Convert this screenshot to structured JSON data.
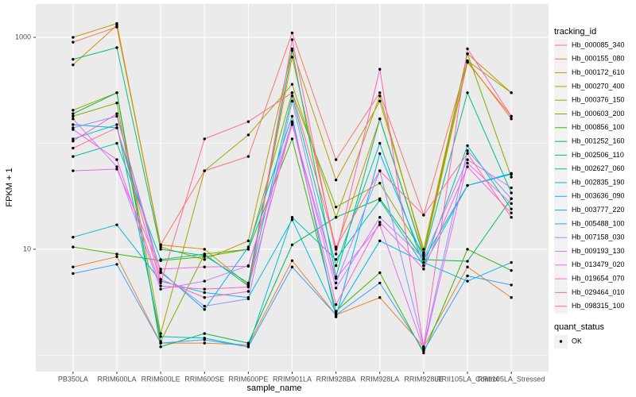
{
  "chart_data": {
    "type": "line",
    "log_y": true,
    "grid": true,
    "x_label": "sample_name",
    "y_label": "FPKM + 1",
    "categories": [
      "PB350LA",
      "RRIM600LA",
      "RRIM600LE",
      "RRIM600SE",
      "RRIM600PE",
      "RRIM901LA",
      "RRIM928BA",
      "RRIM928LA",
      "RRIM928LE",
      "RRII105LA_Control",
      "RRII105LA_Stressed"
    ],
    "ylim": [
      0.7,
      2065
    ],
    "yticks": [
      10,
      1000
    ],
    "legend_title": "tracking_id",
    "point_legend": {
      "title": "quant_status",
      "labels": [
        "OK"
      ],
      "color": "#000000"
    },
    "series": [
      {
        "name": "Hb_000085_340",
        "color": "#F8766D",
        "values": [
          900,
          1250,
          11,
          55,
          75,
          1100,
          70,
          300,
          21,
          600,
          170
        ]
      },
      {
        "name": "Hb_000155_080",
        "color": "#EA8331",
        "values": [
          6.8,
          8.5,
          1.3,
          1.3,
          1.25,
          7.8,
          2.4,
          3.5,
          1.2,
          6.8,
          3.5
        ]
      },
      {
        "name": "Hb_000172_610",
        "color": "#D89000",
        "values": [
          550,
          1300,
          11,
          10,
          4.6,
          650,
          10,
          170,
          8.8,
          580,
          180
        ]
      },
      {
        "name": "Hb_000270_400",
        "color": "#C09B00",
        "values": [
          1000,
          1350,
          10.5,
          8,
          12,
          780,
          45,
          250,
          10,
          700,
          300
        ]
      },
      {
        "name": "Hb_000376_150",
        "color": "#A3A500",
        "values": [
          205,
          300,
          1.6,
          55,
          120,
          360,
          20,
          280,
          9.3,
          600,
          300
        ]
      },
      {
        "name": "Hb_000603_200",
        "color": "#7CAE00",
        "values": [
          180,
          240,
          1.35,
          9,
          10,
          300,
          25,
          42,
          9,
          700,
          48
        ]
      },
      {
        "name": "Hb_000856_100",
        "color": "#39B600",
        "values": [
          10.5,
          9,
          7.8,
          8.5,
          10,
          110,
          2.6,
          6,
          1.05,
          10,
          6.3
        ]
      },
      {
        "name": "Hb_001252_160",
        "color": "#00BB4E",
        "values": [
          190,
          300,
          1.2,
          1.6,
          1.3,
          11,
          20,
          30,
          8,
          7.7,
          30
        ]
      },
      {
        "name": "Hb_002506_110",
        "color": "#00BF7D",
        "values": [
          620,
          800,
          10,
          8.7,
          4.8,
          750,
          5.5,
          170,
          8.6,
          300,
          34
        ]
      },
      {
        "name": "Hb_002627_060",
        "color": "#00C1A3",
        "values": [
          75,
          100,
          8,
          9,
          4.5,
          280,
          7,
          100,
          7,
          95,
          24
        ]
      },
      {
        "name": "Hb_002835_190",
        "color": "#00BFC4",
        "values": [
          110,
          150,
          1.5,
          1.45,
          1.2,
          20,
          8,
          29,
          7,
          40,
          51
        ]
      },
      {
        "name": "Hb_003636_090",
        "color": "#00BAE0",
        "values": [
          13,
          17,
          5,
          3.9,
          3.5,
          19,
          2.5,
          12,
          7.5,
          5,
          7.5
        ]
      },
      {
        "name": "Hb_003777_220",
        "color": "#00B0F6",
        "values": [
          150,
          140,
          6.2,
          2.7,
          10.5,
          180,
          2.3,
          80,
          8,
          40,
          52
        ]
      },
      {
        "name": "Hb_005488_100",
        "color": "#35A2FF",
        "values": [
          5.9,
          7.2,
          1.3,
          1.4,
          1.2,
          6.8,
          2.4,
          4.8,
          1.1,
          5.6,
          4.6
        ]
      },
      {
        "name": "Hb_007158_030",
        "color": "#9590FF",
        "values": [
          140,
          180,
          6,
          2.9,
          3.4,
          250,
          4.8,
          55,
          1.2,
          85,
          30
        ]
      },
      {
        "name": "Hb_009193_130",
        "color": "#C77CFF",
        "values": [
          170,
          60,
          4.2,
          5,
          7,
          160,
          4.3,
          20,
          8.2,
          70,
          38
        ]
      },
      {
        "name": "Hb_013479_020",
        "color": "#E76BF3",
        "values": [
          55,
          57,
          6.5,
          6.8,
          6.9,
          150,
          5.3,
          17,
          1.15,
          65,
          27
        ]
      },
      {
        "name": "Hb_019654_070",
        "color": "#FA62DB",
        "values": [
          135,
          70,
          4.5,
          4.2,
          4.4,
          155,
          3,
          18,
          6.5,
          60,
          22
        ]
      },
      {
        "name": "Hb_029464_010",
        "color": "#FF62BC",
        "values": [
          105,
          190,
          5.2,
          3.5,
          4,
          950,
          9,
          500,
          1.2,
          780,
          180
        ]
      },
      {
        "name": "Hb_098315_100",
        "color": "#FF6C91",
        "values": [
          90,
          140,
          4.8,
          110,
          160,
          300,
          10.5,
          55,
          21,
          80,
          20
        ]
      }
    ]
  }
}
